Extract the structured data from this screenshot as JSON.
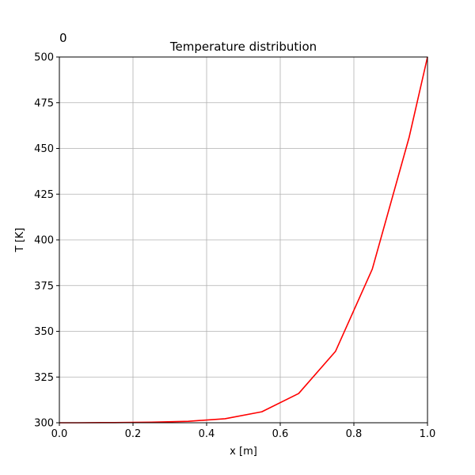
{
  "chart_data": {
    "type": "line",
    "title": "Temperature distribution",
    "corner_text": "0",
    "xlabel": "x [m]",
    "ylabel": "T [K]",
    "xlim": [
      0.0,
      1.0
    ],
    "ylim": [
      300,
      500
    ],
    "xticks": [
      "0.0",
      "0.2",
      "0.4",
      "0.6",
      "0.8",
      "1.0"
    ],
    "yticks": [
      "300",
      "325",
      "350",
      "375",
      "400",
      "425",
      "450",
      "475",
      "500"
    ],
    "grid": true,
    "series": [
      {
        "color": "#ff0000",
        "x": [
          0.0,
          0.05,
          0.15,
          0.25,
          0.35,
          0.45,
          0.55,
          0.65,
          0.75,
          0.85,
          0.95,
          1.0
        ],
        "y": [
          300.0,
          300.0,
          300.1,
          300.3,
          300.8,
          302.2,
          306.0,
          316.0,
          339.0,
          384.0,
          456.0,
          500.0
        ]
      }
    ]
  }
}
